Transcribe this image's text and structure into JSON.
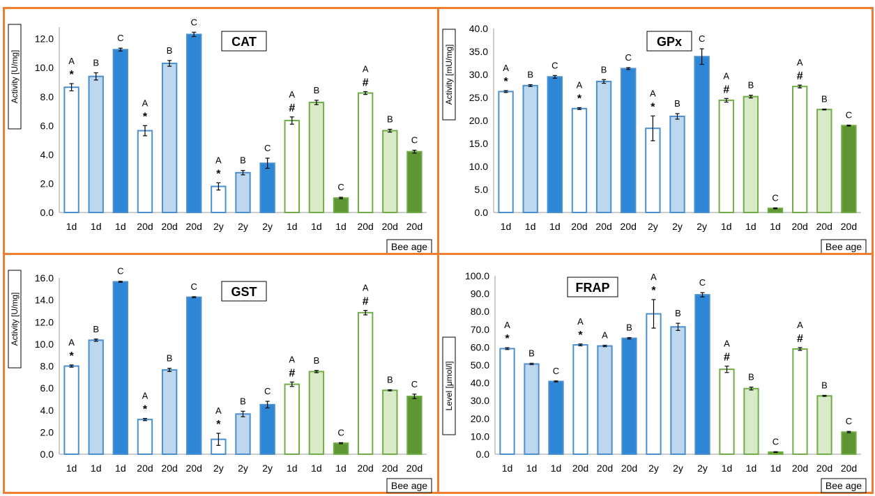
{
  "colors": {
    "frame": "#ED7D31",
    "blue_stroke": "#4A90D0",
    "light_blue_fill": "#BDD7EE",
    "dark_blue_fill": "#2E86D6",
    "green_stroke": "#70AD47",
    "light_green_fill": "#D9EAC8",
    "dark_green_fill": "#5E9634",
    "white_fill": "#FFFFFF"
  },
  "chart_data": [
    {
      "type": "bar",
      "title": "CAT",
      "ylabel": "Activity [U/mg]",
      "xlabel": "Bee age",
      "ylim": [
        0,
        12.8
      ],
      "yticks": [
        "0.0",
        "2.0",
        "4.0",
        "6.0",
        "8.0",
        "10.0",
        "12.0"
      ],
      "categories": [
        "1d",
        "1d",
        "1d",
        "20d",
        "20d",
        "20d",
        "2y",
        "2y",
        "2y",
        "1d",
        "1d",
        "1d",
        "20d",
        "20d",
        "20d"
      ],
      "fills": [
        "white",
        "light_blue",
        "dark_blue",
        "white",
        "light_blue",
        "dark_blue",
        "white",
        "light_blue",
        "dark_blue",
        "white",
        "light_green",
        "dark_green",
        "white",
        "light_green",
        "dark_green"
      ],
      "values": [
        8.65,
        9.4,
        11.25,
        5.65,
        10.3,
        12.3,
        1.8,
        2.75,
        3.4,
        6.35,
        7.6,
        1.0,
        8.25,
        5.65,
        4.2
      ],
      "errors": [
        0.25,
        0.25,
        0.1,
        0.35,
        0.2,
        0.15,
        0.25,
        0.15,
        0.35,
        0.25,
        0.15,
        0.05,
        0.1,
        0.1,
        0.1
      ],
      "letters": [
        "A",
        "B",
        "C",
        "A",
        "B",
        "C",
        "A",
        "B",
        "C",
        "A",
        "B",
        "C",
        "A",
        "B",
        "C"
      ],
      "marks": [
        "*",
        "",
        "",
        "*",
        "",
        "",
        "*",
        "",
        "",
        "#",
        "",
        "",
        "#",
        "",
        ""
      ]
    },
    {
      "type": "bar",
      "title": "GPx",
      "ylabel": "Activity [mU/mg]",
      "xlabel": "Bee age",
      "ylim": [
        0,
        40
      ],
      "yticks": [
        "0.0",
        "5.0",
        "10.0",
        "15.0",
        "20.0",
        "25.0",
        "30.0",
        "35.0",
        "40.0"
      ],
      "categories": [
        "1d",
        "1d",
        "1d",
        "20d",
        "20d",
        "20d",
        "2y",
        "2y",
        "2y",
        "1d",
        "1d",
        "1d",
        "20d",
        "20d",
        "20d"
      ],
      "fills": [
        "white",
        "light_blue",
        "dark_blue",
        "white",
        "light_blue",
        "dark_blue",
        "white",
        "light_blue",
        "dark_blue",
        "white",
        "light_green",
        "dark_green",
        "white",
        "light_green",
        "dark_green"
      ],
      "values": [
        26.3,
        27.6,
        29.5,
        22.6,
        28.5,
        31.3,
        18.3,
        20.9,
        33.9,
        24.4,
        25.2,
        0.9,
        27.4,
        22.4,
        18.9
      ],
      "errors": [
        0.2,
        0.2,
        0.3,
        0.2,
        0.4,
        0.2,
        2.7,
        0.6,
        1.7,
        0.4,
        0.3,
        0.1,
        0.3,
        0.1,
        0.1
      ],
      "letters": [
        "A",
        "B",
        "C",
        "A",
        "B",
        "C",
        "A",
        "B",
        "C",
        "A",
        "B",
        "C",
        "A",
        "B",
        "C"
      ],
      "marks": [
        "*",
        "",
        "",
        "*",
        "",
        "",
        "*",
        "",
        "",
        "#",
        "",
        "",
        "#",
        "",
        ""
      ]
    },
    {
      "type": "bar",
      "title": "GST",
      "ylabel": "Activity [U/mg]",
      "xlabel": "Bee age",
      "ylim": [
        0,
        16
      ],
      "yticks": [
        "0.0",
        "2.0",
        "4.0",
        "6.0",
        "8.0",
        "10.0",
        "12.0",
        "14.0",
        "16.0"
      ],
      "categories": [
        "1d",
        "1d",
        "1d",
        "20d",
        "20d",
        "20d",
        "2y",
        "2y",
        "2y",
        "1d",
        "1d",
        "1d",
        "20d",
        "20d",
        "20d"
      ],
      "fills": [
        "white",
        "light_blue",
        "dark_blue",
        "white",
        "light_blue",
        "dark_blue",
        "white",
        "light_blue",
        "dark_blue",
        "white",
        "light_green",
        "dark_green",
        "white",
        "light_green",
        "dark_green"
      ],
      "values": [
        8.0,
        10.35,
        15.65,
        3.15,
        7.65,
        14.25,
        1.35,
        3.65,
        4.5,
        6.35,
        7.5,
        1.0,
        12.85,
        5.8,
        5.25
      ],
      "errors": [
        0.1,
        0.1,
        0.05,
        0.1,
        0.15,
        0.05,
        0.55,
        0.25,
        0.3,
        0.2,
        0.1,
        0.05,
        0.2,
        0.05,
        0.2
      ],
      "letters": [
        "A",
        "B",
        "C",
        "A",
        "B",
        "C",
        "A",
        "B",
        "C",
        "A",
        "B",
        "C",
        "A",
        "B",
        "C"
      ],
      "marks": [
        "*",
        "",
        "",
        "*",
        "",
        "",
        "*",
        "",
        "",
        "#",
        "",
        "",
        "#",
        "",
        ""
      ]
    },
    {
      "type": "bar",
      "title": "FRAP",
      "ylabel": "Level [μmol/l]",
      "xlabel": "Bee age",
      "ylim": [
        0,
        100
      ],
      "yticks": [
        "0.0",
        "10.0",
        "20.0",
        "30.0",
        "40.0",
        "50.0",
        "60.0",
        "70.0",
        "80.0",
        "90.0",
        "100.0"
      ],
      "categories": [
        "1d",
        "1d",
        "1d",
        "20d",
        "20d",
        "20d",
        "2y",
        "2y",
        "2y",
        "1d",
        "1d",
        "1d",
        "20d",
        "20d",
        "20d"
      ],
      "fills": [
        "white",
        "light_blue",
        "dark_blue",
        "white",
        "light_blue",
        "dark_blue",
        "white",
        "light_blue",
        "dark_blue",
        "white",
        "light_green",
        "dark_green",
        "white",
        "light_green",
        "dark_green"
      ],
      "values": [
        59.2,
        50.6,
        40.8,
        61.3,
        60.7,
        65.0,
        78.7,
        71.4,
        89.4,
        47.6,
        36.8,
        1.2,
        59.0,
        32.7,
        12.4
      ],
      "errors": [
        0.5,
        0.4,
        0.3,
        0.5,
        0.4,
        0.4,
        8.0,
        2.0,
        1.2,
        1.8,
        0.8,
        0.2,
        0.8,
        0.3,
        0.4
      ],
      "letters": [
        "A",
        "B",
        "C",
        "A",
        "A",
        "B",
        "A",
        "B",
        "C",
        "A",
        "B",
        "C",
        "A",
        "B",
        "C"
      ],
      "marks": [
        "*",
        "",
        "",
        "*",
        "",
        "",
        "*",
        "",
        "",
        "#",
        "",
        "",
        "#",
        "",
        ""
      ]
    }
  ]
}
